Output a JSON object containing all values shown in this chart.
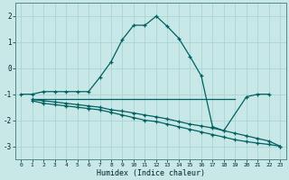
{
  "xlabel": "Humidex (Indice chaleur)",
  "background_color": "#c8e8e8",
  "grid_color": "#b0d8d8",
  "line_color": "#006060",
  "xlim": [
    -0.5,
    23.5
  ],
  "ylim": [
    -3.5,
    2.5
  ],
  "xticks": [
    0,
    1,
    2,
    3,
    4,
    5,
    6,
    7,
    8,
    9,
    10,
    11,
    12,
    13,
    14,
    15,
    16,
    17,
    18,
    19,
    20,
    21,
    22,
    23
  ],
  "yticks": [
    -3,
    -2,
    -1,
    0,
    1,
    2
  ],
  "curve1_x": [
    0,
    1,
    2,
    3,
    4,
    5,
    6,
    7,
    8,
    9,
    10,
    11,
    12,
    13,
    14,
    15,
    16,
    17,
    18,
    20,
    21,
    22
  ],
  "curve1_y": [
    -1.0,
    -1.0,
    -0.9,
    -0.9,
    -0.9,
    -0.9,
    -0.9,
    -0.35,
    0.25,
    1.1,
    1.65,
    1.65,
    2.0,
    1.6,
    1.15,
    0.45,
    -0.3,
    -2.25,
    -2.4,
    -1.1,
    -1.0,
    -1.0
  ],
  "hline_x": [
    1,
    19
  ],
  "hline_y": [
    -1.2,
    -1.2
  ],
  "curve2_x": [
    1,
    2,
    3,
    4,
    5,
    6,
    7,
    8,
    9,
    10,
    11,
    12,
    13,
    14,
    15,
    16,
    17,
    18,
    19,
    20,
    21,
    22,
    23
  ],
  "curve2_y": [
    -1.25,
    -1.35,
    -1.4,
    -1.45,
    -1.5,
    -1.55,
    -1.6,
    -1.7,
    -1.8,
    -1.9,
    -2.0,
    -2.05,
    -2.15,
    -2.25,
    -2.35,
    -2.45,
    -2.55,
    -2.65,
    -2.75,
    -2.82,
    -2.88,
    -2.93,
    -3.0
  ],
  "curve3_x": [
    1,
    2,
    3,
    4,
    5,
    6,
    7,
    8,
    9,
    10,
    11,
    12,
    13,
    14,
    15,
    16,
    17,
    18,
    19,
    20,
    21,
    22,
    23
  ],
  "curve3_y": [
    -1.2,
    -1.25,
    -1.3,
    -1.35,
    -1.4,
    -1.45,
    -1.5,
    -1.6,
    -1.65,
    -1.72,
    -1.8,
    -1.87,
    -1.95,
    -2.05,
    -2.15,
    -2.22,
    -2.3,
    -2.4,
    -2.5,
    -2.6,
    -2.7,
    -2.8,
    -3.0
  ]
}
